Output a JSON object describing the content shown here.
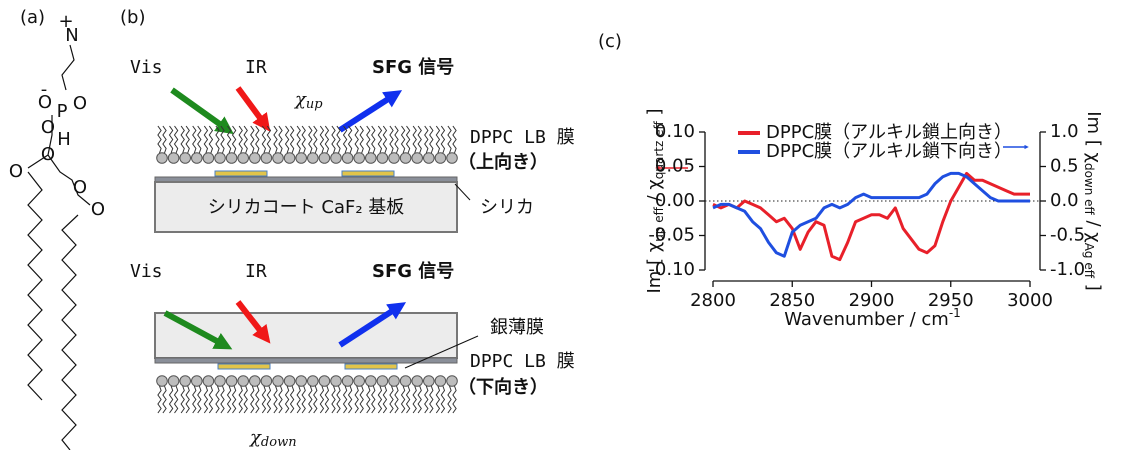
{
  "panel_a": {
    "label": "(a)",
    "atoms": [
      "+",
      "N",
      "-",
      "O",
      "P",
      "O",
      "O",
      "H",
      "O",
      "O",
      "O",
      "O"
    ]
  },
  "panel_b": {
    "label": "(b)",
    "top": {
      "vis": "Vis",
      "ir": "IR",
      "sfg": "SFG 信号",
      "chi": {
        "symbol": "χ",
        "sub": "up"
      },
      "film": "DPPC LB 膜",
      "orientation": "（上向き）",
      "substrate": "シリカコート CaF₂ 基板",
      "silica": "シリカ"
    },
    "bottom": {
      "vis": "Vis",
      "ir": "IR",
      "sfg": "SFG 信号",
      "silver": "銀薄膜",
      "film": "DPPC LB 膜",
      "orientation": "（下向き）",
      "chi": {
        "symbol": "χ",
        "sub": "down"
      }
    }
  },
  "panel_c_label": "(c)",
  "chart_data": {
    "type": "line",
    "xlabel": [
      {
        "text": "Wavenumber / cm"
      },
      {
        "sup": "-1"
      }
    ],
    "ylabel": [
      {
        "text": "Im [ χ"
      },
      {
        "sub": "up eff"
      },
      {
        "text": " / χ"
      },
      {
        "sub": "quartz eff"
      },
      {
        "text": " ]"
      }
    ],
    "y2label": [
      {
        "text": "Im [ χ"
      },
      {
        "sub": "down eff"
      },
      {
        "text": " / χ"
      },
      {
        "sub": "Ag eff"
      },
      {
        "text": " ]"
      }
    ],
    "x": [
      2800,
      2805,
      2810,
      2815,
      2820,
      2825,
      2830,
      2835,
      2840,
      2845,
      2850,
      2855,
      2860,
      2865,
      2870,
      2875,
      2880,
      2885,
      2890,
      2895,
      2900,
      2905,
      2910,
      2915,
      2920,
      2925,
      2930,
      2935,
      2940,
      2945,
      2950,
      2955,
      2960,
      2965,
      2970,
      2975,
      2980,
      2985,
      2990,
      2995,
      3000
    ],
    "series": [
      {
        "name": "DPPC膜（アルキル鎖上向き）",
        "color": "#e8202a",
        "values": [
          -0.005,
          -0.01,
          -0.005,
          -0.01,
          0.0,
          -0.005,
          -0.01,
          -0.02,
          -0.03,
          -0.025,
          -0.04,
          -0.07,
          -0.045,
          -0.03,
          -0.035,
          -0.08,
          -0.085,
          -0.06,
          -0.03,
          -0.025,
          -0.02,
          -0.02,
          -0.025,
          -0.01,
          -0.04,
          -0.055,
          -0.07,
          -0.075,
          -0.065,
          -0.03,
          0.0,
          0.02,
          0.04,
          0.03,
          0.03,
          0.025,
          0.02,
          0.015,
          0.01,
          0.01,
          0.01
        ]
      },
      {
        "name": "DPPC膜（アルキル鎖下向き）",
        "color": "#1f4fe0",
        "axis": "y2",
        "values": [
          -0.1,
          -0.05,
          -0.05,
          -0.1,
          -0.15,
          -0.3,
          -0.4,
          -0.6,
          -0.75,
          -0.8,
          -0.45,
          -0.35,
          -0.3,
          -0.25,
          -0.1,
          -0.05,
          -0.1,
          -0.05,
          0.05,
          0.1,
          0.05,
          0.05,
          0.05,
          0.05,
          0.05,
          0.05,
          0.05,
          0.1,
          0.25,
          0.35,
          0.4,
          0.4,
          0.35,
          0.25,
          0.15,
          0.05,
          0.0,
          0.0,
          0.0,
          0.0,
          0.0
        ]
      }
    ],
    "xlim": [
      2800,
      3000
    ],
    "xticks": [
      2800,
      2850,
      2900,
      2950,
      3000
    ],
    "ylim": [
      -0.1,
      0.1
    ],
    "yticks": [
      {
        "value": -0.1,
        "label": "-0.10"
      },
      -0.05,
      {
        "value": 0,
        "label": "0.00"
      },
      0.05,
      {
        "value": 0.1,
        "label": "0.10"
      }
    ],
    "y2lim": [
      -1,
      1
    ],
    "y2ticks": [
      {
        "value": -1,
        "label": "-1.0"
      },
      -0.5,
      {
        "value": 0,
        "label": "0.0"
      },
      0.5,
      {
        "value": 1,
        "label": "1.0"
      }
    ]
  }
}
